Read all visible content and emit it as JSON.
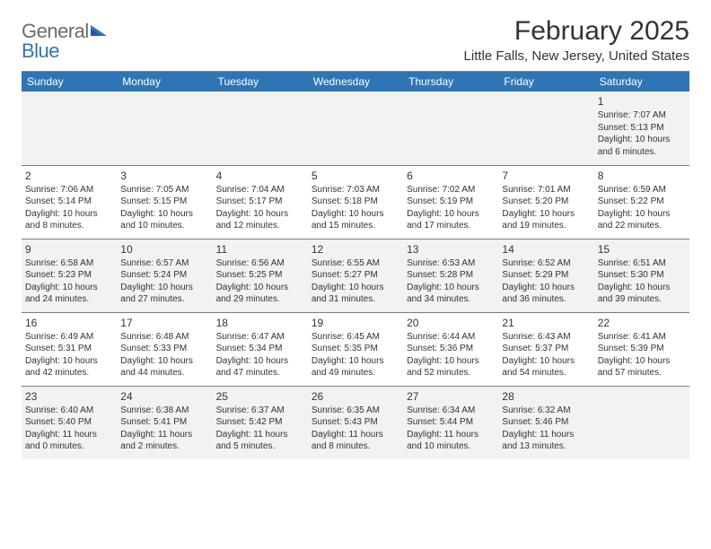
{
  "logo": {
    "part1": "General",
    "part2": "Blue"
  },
  "title": "February 2025",
  "location": "Little Falls, New Jersey, United States",
  "colors": {
    "header_bg": "#2e75b6",
    "header_text": "#ffffff",
    "row_alt": "#f2f2f2",
    "text": "#333333",
    "logo_gray": "#6b6b6b",
    "logo_blue": "#2e75b6",
    "border": "#7a7a7a"
  },
  "day_headers": [
    "Sunday",
    "Monday",
    "Tuesday",
    "Wednesday",
    "Thursday",
    "Friday",
    "Saturday"
  ],
  "weeks": [
    [
      null,
      null,
      null,
      null,
      null,
      null,
      {
        "n": "1",
        "sunrise": "Sunrise: 7:07 AM",
        "sunset": "Sunset: 5:13 PM",
        "daylight": "Daylight: 10 hours and 6 minutes."
      }
    ],
    [
      {
        "n": "2",
        "sunrise": "Sunrise: 7:06 AM",
        "sunset": "Sunset: 5:14 PM",
        "daylight": "Daylight: 10 hours and 8 minutes."
      },
      {
        "n": "3",
        "sunrise": "Sunrise: 7:05 AM",
        "sunset": "Sunset: 5:15 PM",
        "daylight": "Daylight: 10 hours and 10 minutes."
      },
      {
        "n": "4",
        "sunrise": "Sunrise: 7:04 AM",
        "sunset": "Sunset: 5:17 PM",
        "daylight": "Daylight: 10 hours and 12 minutes."
      },
      {
        "n": "5",
        "sunrise": "Sunrise: 7:03 AM",
        "sunset": "Sunset: 5:18 PM",
        "daylight": "Daylight: 10 hours and 15 minutes."
      },
      {
        "n": "6",
        "sunrise": "Sunrise: 7:02 AM",
        "sunset": "Sunset: 5:19 PM",
        "daylight": "Daylight: 10 hours and 17 minutes."
      },
      {
        "n": "7",
        "sunrise": "Sunrise: 7:01 AM",
        "sunset": "Sunset: 5:20 PM",
        "daylight": "Daylight: 10 hours and 19 minutes."
      },
      {
        "n": "8",
        "sunrise": "Sunrise: 6:59 AM",
        "sunset": "Sunset: 5:22 PM",
        "daylight": "Daylight: 10 hours and 22 minutes."
      }
    ],
    [
      {
        "n": "9",
        "sunrise": "Sunrise: 6:58 AM",
        "sunset": "Sunset: 5:23 PM",
        "daylight": "Daylight: 10 hours and 24 minutes."
      },
      {
        "n": "10",
        "sunrise": "Sunrise: 6:57 AM",
        "sunset": "Sunset: 5:24 PM",
        "daylight": "Daylight: 10 hours and 27 minutes."
      },
      {
        "n": "11",
        "sunrise": "Sunrise: 6:56 AM",
        "sunset": "Sunset: 5:25 PM",
        "daylight": "Daylight: 10 hours and 29 minutes."
      },
      {
        "n": "12",
        "sunrise": "Sunrise: 6:55 AM",
        "sunset": "Sunset: 5:27 PM",
        "daylight": "Daylight: 10 hours and 31 minutes."
      },
      {
        "n": "13",
        "sunrise": "Sunrise: 6:53 AM",
        "sunset": "Sunset: 5:28 PM",
        "daylight": "Daylight: 10 hours and 34 minutes."
      },
      {
        "n": "14",
        "sunrise": "Sunrise: 6:52 AM",
        "sunset": "Sunset: 5:29 PM",
        "daylight": "Daylight: 10 hours and 36 minutes."
      },
      {
        "n": "15",
        "sunrise": "Sunrise: 6:51 AM",
        "sunset": "Sunset: 5:30 PM",
        "daylight": "Daylight: 10 hours and 39 minutes."
      }
    ],
    [
      {
        "n": "16",
        "sunrise": "Sunrise: 6:49 AM",
        "sunset": "Sunset: 5:31 PM",
        "daylight": "Daylight: 10 hours and 42 minutes."
      },
      {
        "n": "17",
        "sunrise": "Sunrise: 6:48 AM",
        "sunset": "Sunset: 5:33 PM",
        "daylight": "Daylight: 10 hours and 44 minutes."
      },
      {
        "n": "18",
        "sunrise": "Sunrise: 6:47 AM",
        "sunset": "Sunset: 5:34 PM",
        "daylight": "Daylight: 10 hours and 47 minutes."
      },
      {
        "n": "19",
        "sunrise": "Sunrise: 6:45 AM",
        "sunset": "Sunset: 5:35 PM",
        "daylight": "Daylight: 10 hours and 49 minutes."
      },
      {
        "n": "20",
        "sunrise": "Sunrise: 6:44 AM",
        "sunset": "Sunset: 5:36 PM",
        "daylight": "Daylight: 10 hours and 52 minutes."
      },
      {
        "n": "21",
        "sunrise": "Sunrise: 6:43 AM",
        "sunset": "Sunset: 5:37 PM",
        "daylight": "Daylight: 10 hours and 54 minutes."
      },
      {
        "n": "22",
        "sunrise": "Sunrise: 6:41 AM",
        "sunset": "Sunset: 5:39 PM",
        "daylight": "Daylight: 10 hours and 57 minutes."
      }
    ],
    [
      {
        "n": "23",
        "sunrise": "Sunrise: 6:40 AM",
        "sunset": "Sunset: 5:40 PM",
        "daylight": "Daylight: 11 hours and 0 minutes."
      },
      {
        "n": "24",
        "sunrise": "Sunrise: 6:38 AM",
        "sunset": "Sunset: 5:41 PM",
        "daylight": "Daylight: 11 hours and 2 minutes."
      },
      {
        "n": "25",
        "sunrise": "Sunrise: 6:37 AM",
        "sunset": "Sunset: 5:42 PM",
        "daylight": "Daylight: 11 hours and 5 minutes."
      },
      {
        "n": "26",
        "sunrise": "Sunrise: 6:35 AM",
        "sunset": "Sunset: 5:43 PM",
        "daylight": "Daylight: 11 hours and 8 minutes."
      },
      {
        "n": "27",
        "sunrise": "Sunrise: 6:34 AM",
        "sunset": "Sunset: 5:44 PM",
        "daylight": "Daylight: 11 hours and 10 minutes."
      },
      {
        "n": "28",
        "sunrise": "Sunrise: 6:32 AM",
        "sunset": "Sunset: 5:46 PM",
        "daylight": "Daylight: 11 hours and 13 minutes."
      },
      null
    ]
  ]
}
